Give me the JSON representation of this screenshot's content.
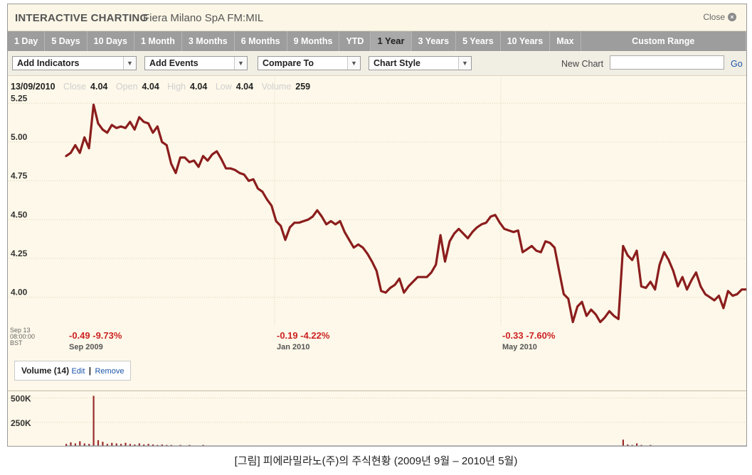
{
  "header": {
    "app_title": "INTERACTIVE CHARTING",
    "subject": "Fiera Milano SpA FM:MIL",
    "close_label": "Close"
  },
  "ranges": [
    "1 Day",
    "5 Days",
    "10 Days",
    "1 Month",
    "3 Months",
    "6 Months",
    "9 Months",
    "YTD",
    "1 Year",
    "3 Years",
    "5 Years",
    "10 Years",
    "Max",
    "Custom Range"
  ],
  "active_range": "1 Year",
  "toolbar": {
    "add_indicators": "Add Indicators",
    "add_events": "Add Events",
    "compare_to": "Compare To",
    "chart_style": "Chart Style",
    "new_chart_label": "New Chart",
    "new_chart_value": "",
    "go_label": "Go"
  },
  "quote": {
    "date": "13/09/2010",
    "close_label": "Close",
    "close": "4.04",
    "open_label": "Open",
    "open": "4.04",
    "high_label": "High",
    "high": "4.04",
    "low_label": "Low",
    "low": "4.04",
    "volume_label": "Volume",
    "volume": "259"
  },
  "timestamp": [
    "Sep 13",
    "08:00:00",
    "BST"
  ],
  "period_changes": [
    {
      "change": "-0.49 -9.73%",
      "month": "Sep 2009"
    },
    {
      "change": "-0.19 -4.22%",
      "month": "Jan 2010"
    },
    {
      "change": "-0.33 -7.60%",
      "month": "May 2010"
    }
  ],
  "volume_panel": {
    "title": "Volume (14)",
    "edit": "Edit",
    "separator": "|",
    "remove": "Remove",
    "y_ticks": [
      "500K",
      "250K"
    ]
  },
  "caption": "[그림] 피에라밀라노(주)의 주식현황 (2009년 9월 – 2010년 5월)",
  "colors": {
    "price_line": "#8b1d1d",
    "change_text": "#cc2222",
    "link": "#1a55a8"
  },
  "chart_data": {
    "type": "line",
    "y_ticks": [
      "5.25",
      "5.00",
      "4.75",
      "4.50",
      "4.25",
      "4.00"
    ],
    "ylim": [
      3.82,
      5.43
    ],
    "x_labels": [
      "Sep 2009",
      "Jan 2010",
      "May 2010"
    ],
    "series": [
      {
        "values": [
          4.91,
          4.93,
          4.98,
          4.93,
          5.03,
          4.96,
          5.24,
          5.12,
          5.08,
          5.06,
          5.11,
          5.09,
          5.1,
          5.09,
          5.13,
          5.08,
          5.16,
          5.13,
          5.12,
          5.06,
          5.1,
          5.0,
          4.98,
          4.86,
          4.8,
          4.9,
          4.9,
          4.87,
          4.88,
          4.84,
          4.91,
          4.88,
          4.92,
          4.94,
          4.89,
          4.83,
          4.83,
          4.82,
          4.8,
          4.79,
          4.75,
          4.76,
          4.7,
          4.68,
          4.63,
          4.59,
          4.49,
          4.46,
          4.37,
          4.45,
          4.48,
          4.48,
          4.49,
          4.5,
          4.52,
          4.56,
          4.52,
          4.47,
          4.49,
          4.47,
          4.49,
          4.42,
          4.37,
          4.32,
          4.34,
          4.32,
          4.28,
          4.23,
          4.17,
          4.04,
          4.03,
          4.06,
          4.08,
          4.12,
          4.03,
          4.07,
          4.1,
          4.13,
          4.13,
          4.13,
          4.16,
          4.21,
          4.4,
          4.23,
          4.36,
          4.41,
          4.44,
          4.41,
          4.38,
          4.42,
          4.45,
          4.47,
          4.48,
          4.52,
          4.53,
          4.48,
          4.44,
          4.43,
          4.42,
          4.43,
          4.29,
          4.31,
          4.33,
          4.3,
          4.29,
          4.36,
          4.35,
          4.32,
          4.17,
          4.02,
          3.99,
          3.84,
          3.94,
          3.97,
          3.88,
          3.92,
          3.89,
          3.84,
          3.87,
          3.91,
          3.88,
          3.86,
          4.33,
          4.27,
          4.24,
          4.3,
          4.07,
          4.06,
          4.1,
          4.05,
          4.21,
          4.29,
          4.24,
          4.17,
          4.07,
          4.13,
          4.05,
          4.11,
          4.16,
          4.07,
          4.02,
          4.0,
          3.98,
          4.01,
          3.93,
          4.04,
          4.01,
          4.02,
          4.05,
          4.05
        ]
      }
    ],
    "volume": [
      0.05,
      0.08,
      0.06,
      0.1,
      0.06,
      0.05,
      0.95,
      0.12,
      0.09,
      0.05,
      0.07,
      0.06,
      0.05,
      0.07,
      0.05,
      0.04,
      0.06,
      0.04,
      0.05,
      0.04,
      0.03,
      0.04,
      0.03,
      0.03,
      0.02,
      0.03,
      0.02,
      0.03,
      0.02,
      0.02,
      0.03,
      0.02,
      0.02,
      0.02,
      0.02,
      0.02,
      0.02,
      0.02,
      0.02,
      0.02,
      0.02,
      0.02,
      0.02,
      0.02,
      0.02,
      0.02,
      0.02,
      0.02,
      0.02,
      0.02,
      0.02,
      0.02,
      0.02,
      0.02,
      0.02,
      0.02,
      0.02,
      0.02,
      0.02,
      0.02,
      0.02,
      0.02,
      0.02,
      0.02,
      0.02,
      0.02,
      0.02,
      0.02,
      0.02,
      0.02,
      0.02,
      0.02,
      0.02,
      0.02,
      0.02,
      0.02,
      0.02,
      0.02,
      0.02,
      0.02,
      0.02,
      0.02,
      0.02,
      0.02,
      0.02,
      0.02,
      0.02,
      0.02,
      0.02,
      0.02,
      0.02,
      0.02,
      0.02,
      0.02,
      0.02,
      0.02,
      0.02,
      0.02,
      0.02,
      0.02,
      0.02,
      0.02,
      0.02,
      0.02,
      0.02,
      0.02,
      0.02,
      0.02,
      0.02,
      0.02,
      0.02,
      0.02,
      0.02,
      0.02,
      0.02,
      0.02,
      0.02,
      0.02,
      0.02,
      0.02,
      0.02,
      0.02,
      0.13,
      0.04,
      0.03,
      0.06,
      0.03,
      0.02,
      0.03,
      0.02,
      0.02,
      0.02,
      0.02,
      0.02,
      0.02,
      0.02,
      0.02,
      0.02,
      0.02,
      0.02,
      0.02,
      0.02,
      0.02,
      0.02,
      0.02,
      0.02,
      0.02,
      0.02,
      0.02,
      0.02
    ],
    "volume_ylim": [
      0,
      570000
    ],
    "volume_scale": 550000
  }
}
